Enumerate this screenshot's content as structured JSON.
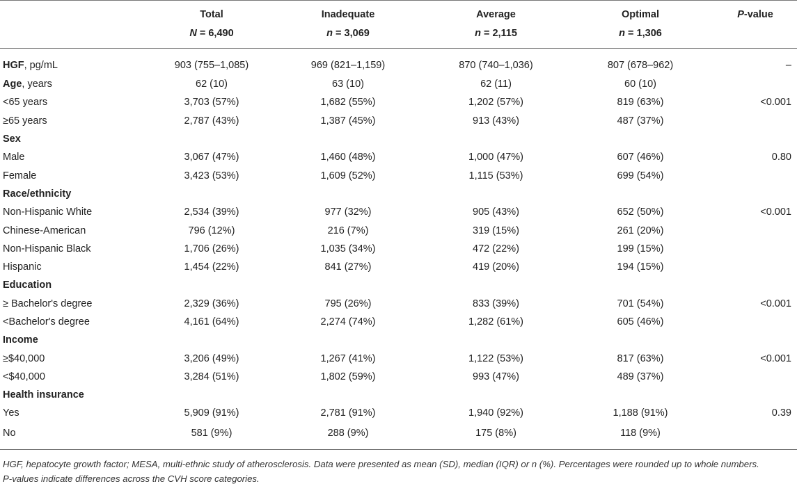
{
  "header": {
    "col0": "",
    "col1_title": "Total",
    "col1_sub_var": "N",
    "col1_sub_val": " = 6,490",
    "col2_title": "Inadequate",
    "col2_sub_var": "n",
    "col2_sub_val": " = 3,069",
    "col3_title": "Average",
    "col3_sub_var": "n",
    "col3_sub_val": " = 2,115",
    "col4_title": "Optimal",
    "col4_sub_var": "n",
    "col4_sub_val": " = 1,306",
    "col5_title_var": "P",
    "col5_title_rest": "-value"
  },
  "rows": [
    {
      "bold": "HGF",
      "rest": ", pg/mL",
      "total": "903 (755–1,085)",
      "inadequate": "969 (821–1,159)",
      "average": "870 (740–1,036)",
      "optimal": "807 (678–962)",
      "p": "–"
    },
    {
      "bold": "Age",
      "rest": ", years",
      "total": "62 (10)",
      "inadequate": "63 (10)",
      "average": "62 (11)",
      "optimal": "60 (10)",
      "p": ""
    },
    {
      "bold": "",
      "rest": "<65 years",
      "total": "3,703 (57%)",
      "inadequate": "1,682 (55%)",
      "average": "1,202 (57%)",
      "optimal": "819 (63%)",
      "p": "<0.001"
    },
    {
      "bold": "",
      "rest": "≥65 years",
      "total": "2,787 (43%)",
      "inadequate": "1,387 (45%)",
      "average": "913 (43%)",
      "optimal": "487 (37%)",
      "p": ""
    },
    {
      "bold": "Sex",
      "rest": "",
      "total": "",
      "inadequate": "",
      "average": "",
      "optimal": "",
      "p": ""
    },
    {
      "bold": "",
      "rest": "Male",
      "total": "3,067 (47%)",
      "inadequate": "1,460 (48%)",
      "average": "1,000 (47%)",
      "optimal": "607 (46%)",
      "p": "0.80"
    },
    {
      "bold": "",
      "rest": "Female",
      "total": "3,423 (53%)",
      "inadequate": "1,609 (52%)",
      "average": "1,115 (53%)",
      "optimal": "699 (54%)",
      "p": ""
    },
    {
      "bold": "Race/ethnicity",
      "rest": "",
      "total": "",
      "inadequate": "",
      "average": "",
      "optimal": "",
      "p": ""
    },
    {
      "bold": "",
      "rest": "Non-Hispanic White",
      "total": "2,534 (39%)",
      "inadequate": "977 (32%)",
      "average": "905 (43%)",
      "optimal": "652 (50%)",
      "p": "<0.001"
    },
    {
      "bold": "",
      "rest": "Chinese-American",
      "total": "796 (12%)",
      "inadequate": "216 (7%)",
      "average": "319 (15%)",
      "optimal": "261 (20%)",
      "p": ""
    },
    {
      "bold": "",
      "rest": "Non-Hispanic Black",
      "total": "1,706 (26%)",
      "inadequate": "1,035 (34%)",
      "average": "472 (22%)",
      "optimal": "199 (15%)",
      "p": ""
    },
    {
      "bold": "",
      "rest": "Hispanic",
      "total": "1,454 (22%)",
      "inadequate": "841 (27%)",
      "average": "419 (20%)",
      "optimal": "194 (15%)",
      "p": ""
    },
    {
      "bold": "Education",
      "rest": "",
      "total": "",
      "inadequate": "",
      "average": "",
      "optimal": "",
      "p": ""
    },
    {
      "bold": "",
      "rest": "≥ Bachelor's degree",
      "total": "2,329 (36%)",
      "inadequate": "795 (26%)",
      "average": "833 (39%)",
      "optimal": "701 (54%)",
      "p": "<0.001"
    },
    {
      "bold": "",
      "rest": "<Bachelor's degree",
      "total": "4,161 (64%)",
      "inadequate": "2,274 (74%)",
      "average": "1,282 (61%)",
      "optimal": "605 (46%)",
      "p": ""
    },
    {
      "bold": "Income",
      "rest": "",
      "total": "",
      "inadequate": "",
      "average": "",
      "optimal": "",
      "p": ""
    },
    {
      "bold": "",
      "rest": "≥$40,000",
      "total": "3,206 (49%)",
      "inadequate": "1,267 (41%)",
      "average": "1,122 (53%)",
      "optimal": "817 (63%)",
      "p": "<0.001"
    },
    {
      "bold": "",
      "rest": "<$40,000",
      "total": "3,284 (51%)",
      "inadequate": "1,802 (59%)",
      "average": "993 (47%)",
      "optimal": "489 (37%)",
      "p": ""
    },
    {
      "bold": "Health insurance",
      "rest": "",
      "total": "",
      "inadequate": "",
      "average": "",
      "optimal": "",
      "p": ""
    },
    {
      "bold": "",
      "rest": "Yes",
      "total": "5,909 (91%)",
      "inadequate": "2,781 (91%)",
      "average": "1,940 (92%)",
      "optimal": "1,188 (91%)",
      "p": "0.39"
    },
    {
      "bold": "",
      "rest": "No",
      "total": "581 (9%)",
      "inadequate": "288 (9%)",
      "average": "175 (8%)",
      "optimal": "118 (9%)",
      "p": ""
    }
  ],
  "footnote": {
    "line1": "HGF, hepatocyte growth factor; MESA, multi-ethnic study of atherosclerosis. Data were presented as mean (SD), median (IQR) or n (%). Percentages were rounded up to whole numbers.",
    "line2": "P-values indicate differences across the CVH score categories."
  }
}
